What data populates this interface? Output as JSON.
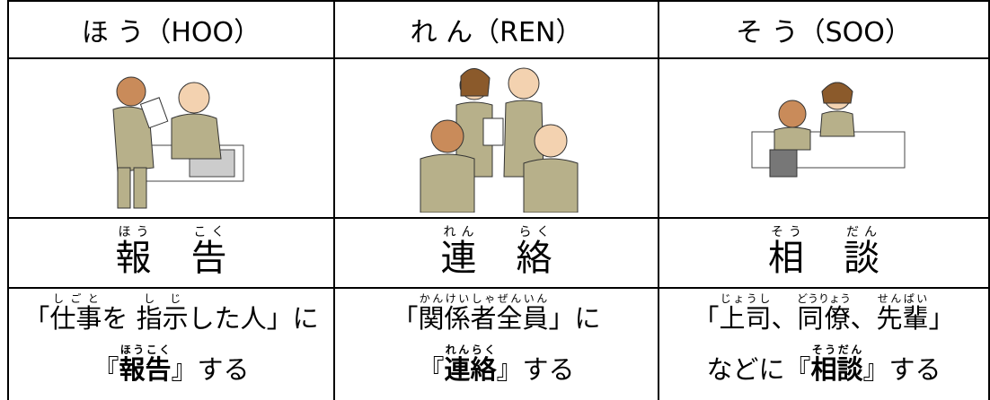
{
  "columns": [
    {
      "header": "ほ う（HOO）",
      "term": [
        {
          "base": "報",
          "ruby": "ほう"
        },
        {
          "base": "告",
          "ruby": "こく"
        }
      ],
      "lines": [
        [
          {
            "text": "「"
          },
          {
            "base": "仕事",
            "ruby": "しごと"
          },
          {
            "text": "を "
          },
          {
            "base": "指示",
            "ruby": "しじ"
          },
          {
            "text": "した人」に"
          }
        ],
        [
          {
            "text": "『"
          },
          {
            "base": "報告",
            "ruby": "ほうこく",
            "bold": true
          },
          {
            "text": "』する"
          }
        ]
      ]
    },
    {
      "header": "れ ん（REN）",
      "term": [
        {
          "base": "連",
          "ruby": "れん"
        },
        {
          "base": "絡",
          "ruby": "らく"
        }
      ],
      "lines": [
        [
          {
            "text": "「"
          },
          {
            "base": "関係者全員",
            "ruby": "かんけいしゃぜんいん"
          },
          {
            "text": "」に"
          }
        ],
        [
          {
            "text": "『"
          },
          {
            "base": "連絡",
            "ruby": "れんらく",
            "bold": true
          },
          {
            "text": "』する"
          }
        ]
      ]
    },
    {
      "header": "そ う（SOO）",
      "term": [
        {
          "base": "相",
          "ruby": "そう"
        },
        {
          "base": "談",
          "ruby": "だん"
        }
      ],
      "lines": [
        [
          {
            "text": "「"
          },
          {
            "base": "上司",
            "ruby": "じょうし"
          },
          {
            "text": "、"
          },
          {
            "base": "同僚",
            "ruby": "どうりょう"
          },
          {
            "text": "、"
          },
          {
            "base": "先輩",
            "ruby": "せんぱい"
          },
          {
            "text": "」"
          }
        ],
        [
          {
            "text": "などに『"
          },
          {
            "base": "相談",
            "ruby": "そうだん",
            "bold": true
          },
          {
            "text": "』する"
          }
        ]
      ]
    }
  ]
}
